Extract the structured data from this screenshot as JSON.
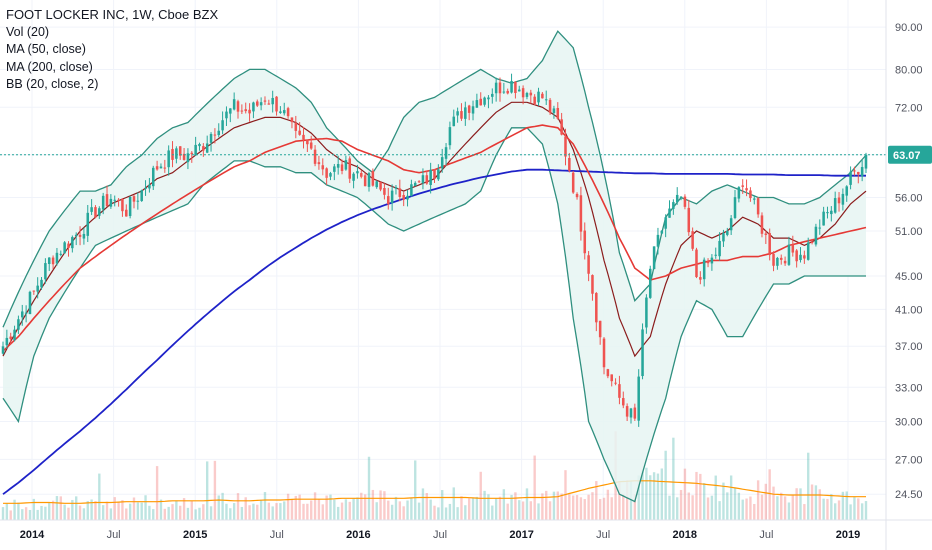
{
  "legend": {
    "title": "FOOT LOCKER INC, 1W, Cboe BZX",
    "vol": "Vol (20)",
    "ma50": "MA (50, close)",
    "ma200": "MA (200, close)",
    "bb": "BB (20, close, 2)"
  },
  "last_price": "63.07",
  "colors": {
    "up": "#26a69a",
    "down": "#ef5350",
    "ma50": "#e53935",
    "ma200": "#1e22c8",
    "vol_ma": "#ff9800",
    "bb_band": "#2f8f7f",
    "bb_basis": "#8b1c1c",
    "bb_fill": "#e6f4f2",
    "price_line": "#26a69a"
  },
  "chart_data": {
    "type": "candlestick",
    "title": "FOOT LOCKER INC, 1W, Cboe BZX",
    "y_axis_scale": "log",
    "y_ticks": [
      "90.00",
      "80.00",
      "72.00",
      "63.07",
      "56.00",
      "51.00",
      "45.00",
      "41.00",
      "37.00",
      "33.00",
      "30.00",
      "27.00",
      "24.50"
    ],
    "x_ticks": [
      {
        "label": "2014",
        "year": true
      },
      {
        "label": "Jul",
        "year": false
      },
      {
        "label": "2015",
        "year": true
      },
      {
        "label": "Jul",
        "year": false
      },
      {
        "label": "2016",
        "year": true
      },
      {
        "label": "Jul",
        "year": false
      },
      {
        "label": "2017",
        "year": true
      },
      {
        "label": "Jul",
        "year": false
      },
      {
        "label": "2018",
        "year": true
      },
      {
        "label": "Jul",
        "year": false
      },
      {
        "label": "2019",
        "year": true
      }
    ],
    "weeks_per_knot": 4,
    "close_knots": [
      37,
      40,
      43,
      47,
      49,
      51,
      54,
      56,
      54,
      57,
      61,
      63,
      63,
      65,
      69,
      72,
      71,
      74,
      72,
      66,
      64,
      60,
      61,
      60,
      58,
      56,
      57,
      58,
      60,
      68,
      72,
      74,
      76,
      77,
      75,
      74,
      69,
      58,
      46,
      35,
      32,
      30,
      46,
      53,
      56,
      45,
      47,
      51,
      59,
      53,
      47,
      48,
      48,
      52,
      55,
      59,
      63
    ],
    "ma50_knots": [
      36.5,
      38,
      40,
      42,
      44,
      46,
      47.5,
      49,
      50.5,
      52,
      53.5,
      55,
      56.5,
      58,
      59.5,
      61,
      62,
      63.5,
      64.5,
      65.5,
      65.8,
      66,
      65.5,
      64,
      63,
      62,
      60.5,
      60,
      60.5,
      61.5,
      62.5,
      63.5,
      65,
      66.5,
      68,
      68.5,
      68,
      65,
      60,
      55,
      50,
      46,
      44.5,
      45,
      46,
      46.5,
      47,
      47,
      47.5,
      47.5,
      48,
      49,
      49.5,
      50,
      50.5,
      51,
      51.5
    ],
    "ma200_knots": [
      24.5,
      25.3,
      26.2,
      27.2,
      28.2,
      29.2,
      30.3,
      31.5,
      32.8,
      34.2,
      35.6,
      37.1,
      38.6,
      40.1,
      41.6,
      43.1,
      44.5,
      46,
      47.4,
      48.7,
      50,
      51.2,
      52.3,
      53.3,
      54.2,
      55,
      55.8,
      56.6,
      57.3,
      58,
      58.6,
      59.2,
      59.7,
      60.2,
      60.5,
      60.5,
      60.4,
      60.3,
      60.2,
      60.1,
      60.0,
      59.9,
      59.9,
      59.8,
      59.8,
      59.8,
      59.8,
      59.8,
      59.7,
      59.7,
      59.7,
      59.6,
      59.6,
      59.6,
      59.5,
      59.5,
      59.5
    ],
    "bb_basis_knots": [
      36,
      39,
      42,
      45,
      48,
      51,
      53,
      55,
      56,
      57,
      59,
      60,
      62,
      64,
      66,
      68,
      69,
      70,
      70,
      69,
      67,
      64,
      62,
      61,
      59,
      58,
      57,
      58,
      59,
      62,
      65,
      68,
      71,
      73,
      73,
      72,
      70,
      64,
      56,
      47,
      40,
      36,
      38,
      44,
      49,
      51,
      50,
      51,
      53,
      52,
      50,
      50,
      49,
      50,
      52,
      55,
      57
    ],
    "bb_upper_knots": [
      39,
      43,
      47,
      51,
      54,
      57,
      57,
      58,
      61,
      63,
      66,
      68,
      69,
      72,
      75,
      78,
      80,
      80,
      78,
      76,
      73,
      68,
      65,
      62,
      60,
      64,
      70,
      73,
      74,
      76,
      78,
      80,
      78,
      77,
      78,
      82,
      89,
      85,
      72,
      60,
      48,
      42,
      44,
      53,
      56,
      55,
      57,
      58,
      57,
      56,
      56,
      55,
      55,
      56,
      58,
      60,
      63
    ],
    "bb_lower_knots": [
      32,
      30,
      36,
      40,
      43,
      46,
      49,
      50,
      51,
      52,
      53,
      54,
      55,
      58,
      60,
      62,
      62,
      61,
      61,
      60,
      60,
      58,
      57,
      56,
      54,
      52,
      51,
      52,
      53,
      54,
      55,
      57,
      63,
      68,
      68,
      65,
      55,
      40,
      30,
      27,
      24.5,
      24,
      28,
      32,
      38,
      42,
      41,
      38,
      38,
      41,
      44,
      44,
      45,
      45,
      45,
      45,
      45
    ],
    "volume_ma_knots": [
      2.0,
      2.0,
      2.1,
      2.1,
      2.0,
      2.0,
      2.1,
      2.1,
      2.2,
      2.2,
      2.2,
      2.3,
      2.3,
      2.3,
      2.4,
      2.3,
      2.3,
      2.4,
      2.4,
      2.5,
      2.5,
      2.5,
      2.6,
      2.6,
      2.6,
      2.6,
      2.6,
      2.7,
      2.7,
      2.7,
      2.7,
      2.6,
      2.6,
      2.6,
      2.7,
      2.7,
      2.8,
      3.3,
      3.8,
      4.2,
      4.6,
      4.7,
      4.7,
      4.6,
      4.5,
      4.4,
      4.2,
      4.0,
      3.7,
      3.4,
      3.1,
      3.0,
      3.0,
      3.0,
      2.9,
      2.8,
      2.8
    ],
    "volume_max": 12
  }
}
